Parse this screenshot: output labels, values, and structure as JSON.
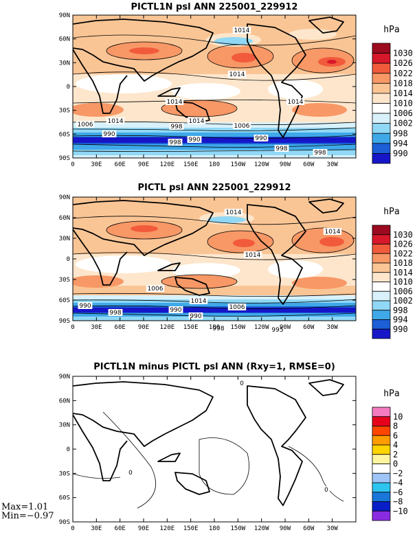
{
  "panels": [
    {
      "title": "PICTL1N psl ANN 225001_229912",
      "unit": "hPa",
      "colorbar": {
        "labels": [
          "1030",
          "1026",
          "1022",
          "1018",
          "1014",
          "1010",
          "1006",
          "1002",
          "998",
          "994",
          "990"
        ],
        "colors": [
          "#9b0a1f",
          "#d7182a",
          "#f25a3c",
          "#f79866",
          "#fac595",
          "#fde6cc",
          "#ffffff",
          "#d8f1fb",
          "#90d8f5",
          "#3fa8e8",
          "#1c5fd6",
          "#1616c8"
        ]
      },
      "contour_labels": [
        "1014",
        "1014",
        "1014",
        "1014",
        "1006",
        "1014",
        "998",
        "1014",
        "990",
        "998",
        "990",
        "1006",
        "990",
        "998",
        "998"
      ]
    },
    {
      "title": "PICTL psl ANN 225001_229912",
      "unit": "hPa",
      "colorbar": {
        "labels": [
          "1030",
          "1026",
          "1022",
          "1018",
          "1014",
          "1010",
          "1006",
          "1002",
          "998",
          "994",
          "990"
        ],
        "colors": [
          "#9b0a1f",
          "#d7182a",
          "#f25a3c",
          "#f79866",
          "#fac595",
          "#fde6cc",
          "#ffffff",
          "#d8f1fb",
          "#90d8f5",
          "#3fa8e8",
          "#1c5fd6",
          "#1616c8"
        ]
      },
      "contour_labels": [
        "1014",
        "1014",
        "1014",
        "1006",
        "990",
        "998",
        "990",
        "1014",
        "1006",
        "990",
        "998",
        "995"
      ]
    },
    {
      "title": "PICTL1N minus PICTL psl ANN (Rxy=1, RMSE=0)",
      "unit": "hPa",
      "colorbar": {
        "labels": [
          "10",
          "8",
          "6",
          "4",
          "2",
          "0",
          "−2",
          "−4",
          "−6",
          "−8",
          "−10"
        ],
        "colors": [
          "#f47bc0",
          "#e6001c",
          "#ff4500",
          "#ff9d00",
          "#ffd400",
          "#fff5a0",
          "#ffffff",
          "#9fc5f8",
          "#2ec4f0",
          "#1877d8",
          "#0a1ec8",
          "#8a2be2"
        ]
      },
      "contour_labels": [
        "0",
        "0",
        "0"
      ],
      "stats": {
        "max": "Max=1.01",
        "min": "Min=−0.97"
      }
    }
  ],
  "axes": {
    "lat_ticks": [
      "90N",
      "60N",
      "30N",
      "0",
      "30S",
      "60S",
      "90S"
    ],
    "lon_ticks": [
      "0",
      "30E",
      "60E",
      "90E",
      "120E",
      "150E",
      "180",
      "150W",
      "120W",
      "90W",
      "60W",
      "30W"
    ]
  }
}
